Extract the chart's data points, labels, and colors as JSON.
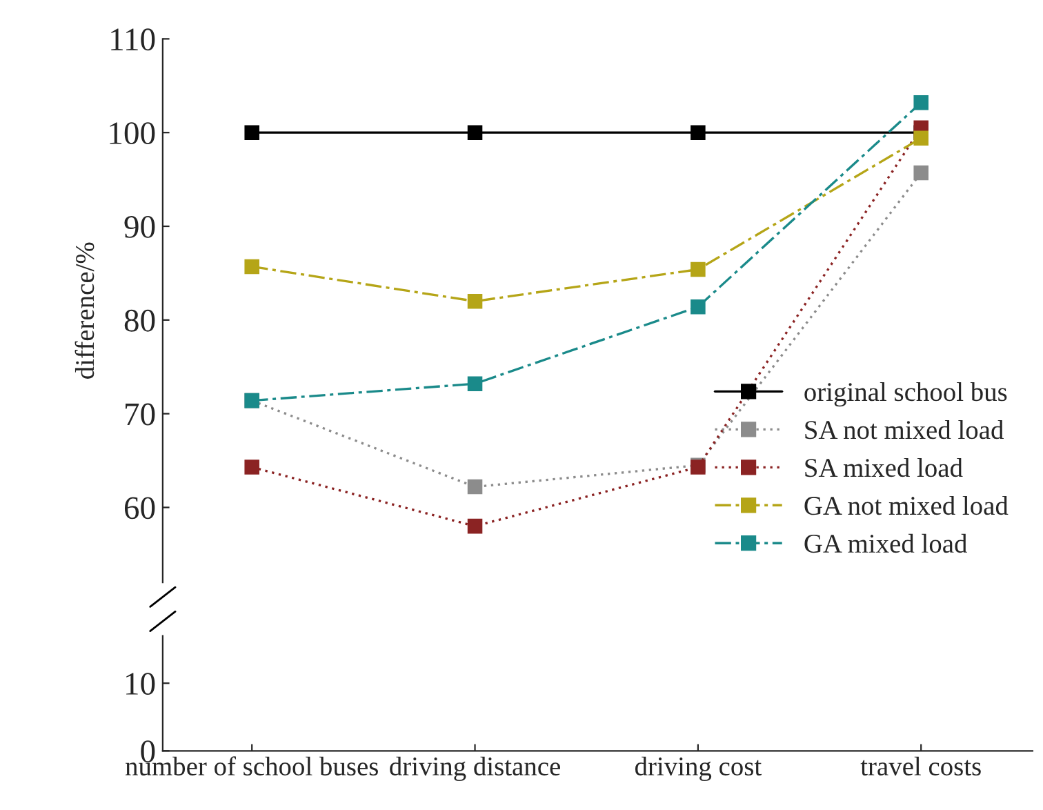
{
  "chart_data": [
    {
      "type": "line",
      "ylabel": "difference/%",
      "categories": [
        "number of school buses",
        "driving distance",
        "driving cost",
        "travel costs"
      ],
      "series": [
        {
          "name": "original school bus",
          "color": "#000000",
          "values": [
            100,
            100,
            100,
            100
          ],
          "line_style": "solid"
        },
        {
          "name": "SA not mixed load",
          "color": "#8c8c8c",
          "values": [
            71.4,
            62.2,
            64.5,
            95.7
          ],
          "line_style": "dotted"
        },
        {
          "name": "SA mixed load",
          "color": "#8b2323",
          "values": [
            64.3,
            58.0,
            64.3,
            100.5
          ],
          "line_style": "dotted"
        },
        {
          "name": "GA not mixed load",
          "color": "#b5a517",
          "values": [
            85.7,
            82.0,
            85.4,
            99.4
          ],
          "line_style": "dashed"
        },
        {
          "name": "GA mixed load",
          "color": "#1a8a8a",
          "values": [
            71.4,
            73.2,
            81.4,
            103.2
          ],
          "line_style": "dashed"
        }
      ],
      "ylim": [
        52,
        110
      ],
      "yticks": [
        60,
        70,
        80,
        90,
        100,
        110
      ],
      "marker": "square",
      "grid": false,
      "legend": "bottom right"
    },
    {
      "type": "line",
      "tick_labels": "y",
      "categories": [
        null,
        null,
        null,
        null
      ],
      "ylim": [
        0,
        17
      ],
      "yticks": [
        0,
        10
      ]
    }
  ]
}
